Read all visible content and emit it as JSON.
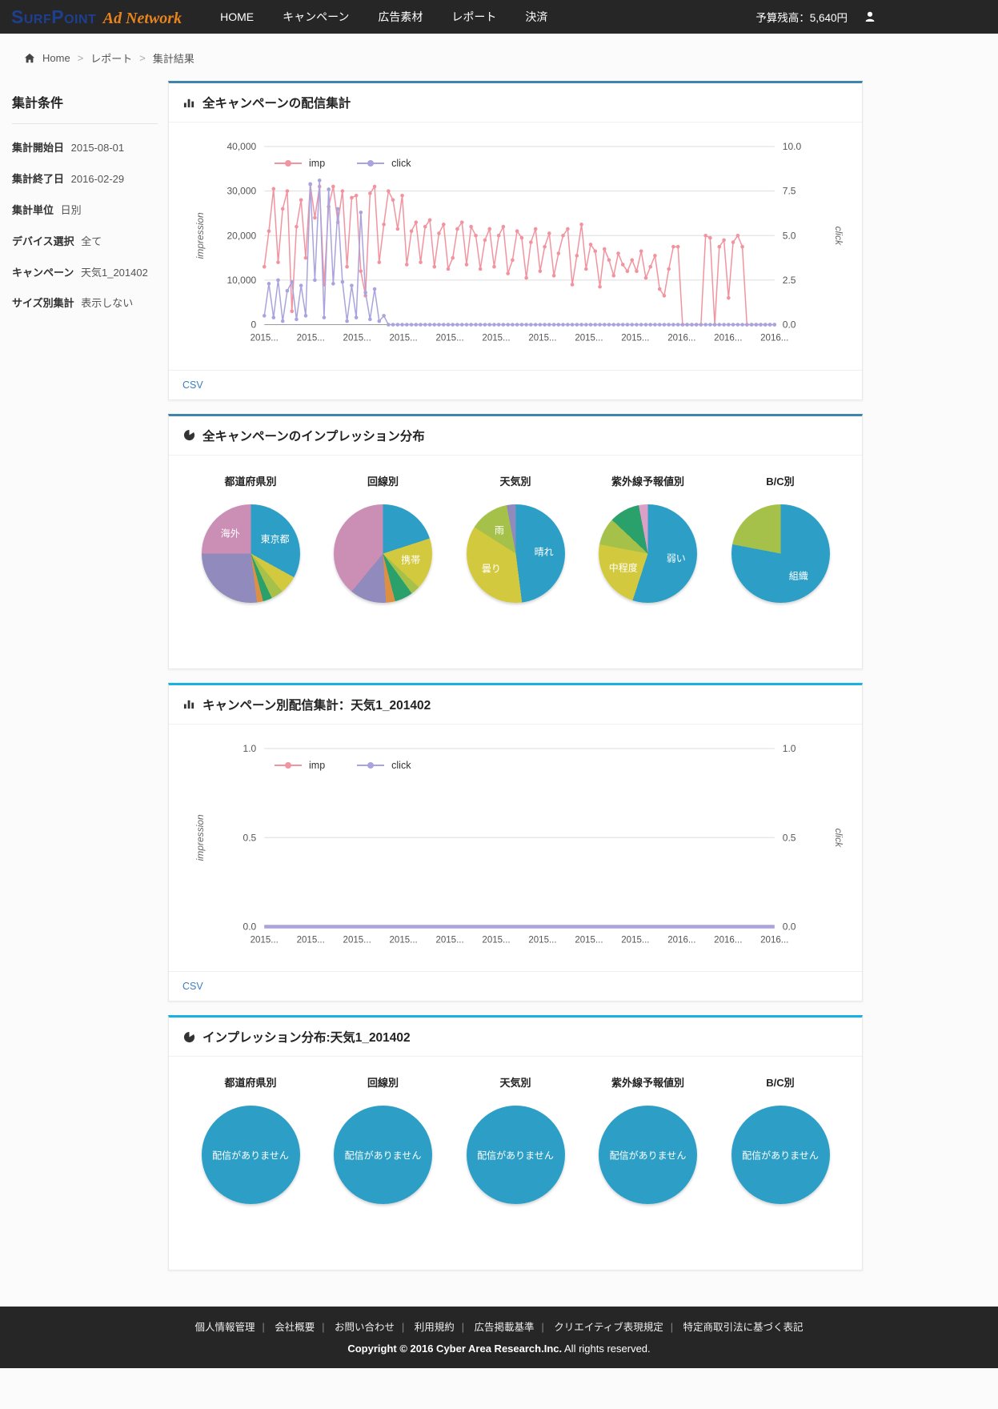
{
  "colors": {
    "logo_primary": "#1e3f8f",
    "logo_secondary": "#e8831d",
    "accent_blue": "#3e84ae",
    "accent_cyan": "#17b2e3",
    "imp_line": "#f2949f",
    "click_line": "#a9a4dd",
    "pie_teal": "#2d9fc6"
  },
  "navbar": {
    "logo_primary": "SurfPoint",
    "logo_secondary": "Ad Network",
    "items": [
      {
        "label": "HOME"
      },
      {
        "label": "キャンペーン"
      },
      {
        "label": "広告素材"
      },
      {
        "label": "レポート"
      },
      {
        "label": "決済"
      }
    ],
    "budget": "予算残高：5,640円"
  },
  "breadcrumb": {
    "separator": ">",
    "items": [
      "Home",
      "レポート",
      "集計結果"
    ]
  },
  "sidebar": {
    "title": "集計条件",
    "fields": [
      {
        "label": "集計開始日",
        "value": "2015-08-01"
      },
      {
        "label": "集計終了日",
        "value": "2016-02-29"
      },
      {
        "label": "集計単位",
        "value": "日別"
      },
      {
        "label": "デバイス選択",
        "value": "全て"
      },
      {
        "label": "キャンペーン",
        "value": "天気1_201402"
      },
      {
        "label": "サイズ別集計",
        "value": "表示しない"
      }
    ]
  },
  "panels": {
    "all_delivery": {
      "title": "全キャンペーンの配信集計",
      "csv_label": "CSV"
    },
    "all_distribution": {
      "title": "全キャンペーンのインプレッション分布"
    },
    "single_delivery": {
      "title": "キャンペーン別配信集計：天気1_201402",
      "csv_label": "CSV"
    },
    "single_distribution": {
      "title": "インプレッション分布:天気1_201402"
    }
  },
  "chart_data": [
    {
      "type": "line",
      "title": "全キャンペーンの配信集計",
      "x_labels": [
        "2015...",
        "2015...",
        "2015...",
        "2015...",
        "2015...",
        "2015...",
        "2015...",
        "2015...",
        "2015...",
        "2016...",
        "2016...",
        "2016..."
      ],
      "y_left": {
        "title": "impression",
        "max": 40000,
        "ticks": [
          {
            "v": 0,
            "label": "0"
          },
          {
            "v": 10000,
            "label": "10,000"
          },
          {
            "v": 20000,
            "label": "20,000"
          },
          {
            "v": 30000,
            "label": "30,000"
          },
          {
            "v": 40000,
            "label": "40,000"
          }
        ]
      },
      "y_right": {
        "title": "click",
        "max": 10,
        "ticks": [
          {
            "v": 0,
            "label": "0.0"
          },
          {
            "v": 2.5,
            "label": "2.5"
          },
          {
            "v": 5,
            "label": "5.0"
          },
          {
            "v": 7.5,
            "label": "7.5"
          },
          {
            "v": 10,
            "label": "10.0"
          }
        ]
      },
      "series": [
        {
          "name": "imp",
          "axis": "left",
          "color": "#f2949f",
          "width": 1.5,
          "dots": true,
          "values": [
            13000,
            21000,
            30500,
            14000,
            26000,
            30000,
            3000,
            22000,
            28000,
            15000,
            31500,
            24000,
            31000,
            9000,
            26500,
            31000,
            23000,
            30000,
            13000,
            28500,
            29000,
            12000,
            6500,
            29500,
            31000,
            14000,
            22500,
            30000,
            28000,
            21500,
            29000,
            13500,
            21000,
            23000,
            14000,
            22000,
            23500,
            13000,
            20500,
            22500,
            12500,
            15000,
            21500,
            23000,
            13500,
            22000,
            20000,
            12500,
            19000,
            21500,
            13000,
            20000,
            22000,
            11500,
            14500,
            21000,
            19500,
            10500,
            18500,
            21500,
            12000,
            17500,
            20500,
            11000,
            16000,
            20000,
            21500,
            9000,
            15500,
            22500,
            12500,
            18000,
            16500,
            8500,
            17000,
            14500,
            11000,
            16000,
            13500,
            12000,
            14500,
            12000,
            16500,
            10500,
            13000,
            15500,
            8000,
            6500,
            12500,
            17500,
            17500,
            0,
            0,
            0,
            0,
            0,
            20000,
            19500,
            0,
            17500,
            19000,
            6000,
            18500,
            20000,
            17500,
            0,
            0,
            0,
            0,
            0,
            0,
            0
          ]
        },
        {
          "name": "click",
          "axis": "right",
          "color": "#a9a4dd",
          "width": 1.5,
          "dots": true,
          "values": [
            0.5,
            2.3,
            0.4,
            2.5,
            0.2,
            1.9,
            2.4,
            0.3,
            2.2,
            0.5,
            7.9,
            2.5,
            8.1,
            0.4,
            7.6,
            2.3,
            6.5,
            2.4,
            0.2,
            2.2,
            0.4,
            6.3,
            1.8,
            0.3,
            2.0,
            0.2,
            0.5,
            0,
            0,
            0,
            0,
            0,
            0,
            0,
            0,
            0,
            0,
            0,
            0,
            0,
            0,
            0,
            0,
            0,
            0,
            0,
            0,
            0,
            0,
            0,
            0,
            0,
            0,
            0,
            0,
            0,
            0,
            0,
            0,
            0,
            0,
            0,
            0,
            0,
            0,
            0,
            0,
            0,
            0,
            0,
            0,
            0,
            0,
            0,
            0,
            0,
            0,
            0,
            0,
            0,
            0,
            0,
            0,
            0,
            0,
            0,
            0,
            0,
            0,
            0,
            0,
            0,
            0,
            0,
            0,
            0,
            0,
            0,
            0,
            0,
            0,
            0,
            0,
            0,
            0,
            0,
            0,
            0,
            0,
            0,
            0,
            0
          ]
        }
      ]
    },
    {
      "type": "pie",
      "title": "全キャンペーンのインプレッション分布",
      "charts": [
        {
          "name": "都道府県別",
          "slices": [
            {
              "label": "東京都",
              "value": 33,
              "color": "#2d9fc6"
            },
            {
              "value": 6,
              "color": "#d3c93e"
            },
            {
              "value": 4,
              "color": "#a6c14a"
            },
            {
              "value": 3,
              "color": "#2aa06a"
            },
            {
              "value": 2,
              "color": "#dd9044"
            },
            {
              "value": 27,
              "color": "#918abd"
            },
            {
              "label": "海外",
              "value": 25,
              "color": "#cb8fb6"
            }
          ]
        },
        {
          "name": "回線別",
          "slices": [
            {
              "value": 20,
              "color": "#2d9fc6"
            },
            {
              "label": "携帯",
              "value": 17,
              "color": "#d3c93e"
            },
            {
              "value": 3,
              "color": "#a6c14a"
            },
            {
              "value": 6,
              "color": "#2aa06a"
            },
            {
              "value": 3,
              "color": "#dd9044"
            },
            {
              "value": 12,
              "color": "#918abd"
            },
            {
              "value": 39,
              "color": "#cb8fb6"
            }
          ]
        },
        {
          "name": "天気別",
          "slices": [
            {
              "label": "晴れ",
              "value": 48,
              "color": "#2d9fc6"
            },
            {
              "label": "曇り",
              "value": 36,
              "color": "#d3c93e"
            },
            {
              "label": "雨",
              "value": 13,
              "color": "#a6c14a"
            },
            {
              "value": 3,
              "color": "#918abd"
            }
          ]
        },
        {
          "name": "紫外線予報値別",
          "slices": [
            {
              "label": "弱い",
              "value": 55,
              "color": "#2d9fc6"
            },
            {
              "label": "中程度",
              "value": 23,
              "color": "#d3c93e"
            },
            {
              "value": 9,
              "color": "#a6c14a"
            },
            {
              "value": 10,
              "color": "#2aa06a"
            },
            {
              "value": 3,
              "color": "#dba0c8"
            }
          ]
        },
        {
          "name": "B/C別",
          "slices": [
            {
              "label": "組織",
              "value": 78,
              "color": "#2d9fc6"
            },
            {
              "value": 22,
              "color": "#a6c14a"
            }
          ]
        }
      ]
    },
    {
      "type": "line",
      "title": "キャンペーン別配信集計：天気1_201402",
      "x_labels": [
        "2015...",
        "2015...",
        "2015...",
        "2015...",
        "2015...",
        "2015...",
        "2015...",
        "2015...",
        "2015...",
        "2016...",
        "2016...",
        "2016..."
      ],
      "y_left": {
        "title": "impression",
        "max": 1,
        "ticks": [
          {
            "v": 0,
            "label": "0.0"
          },
          {
            "v": 0.5,
            "label": "0.5"
          },
          {
            "v": 1,
            "label": "1.0"
          }
        ]
      },
      "y_right": {
        "title": "click",
        "max": 1,
        "ticks": [
          {
            "v": 0,
            "label": "0.0"
          },
          {
            "v": 0.5,
            "label": "0.5"
          },
          {
            "v": 1,
            "label": "1.0"
          }
        ]
      },
      "series": [
        {
          "name": "imp",
          "axis": "left",
          "color": "#f2949f",
          "width": 2,
          "dots": false,
          "values": [
            0,
            0,
            0,
            0,
            0,
            0,
            0,
            0,
            0,
            0,
            0,
            0
          ]
        },
        {
          "name": "click",
          "axis": "right",
          "color": "#a9a4dd",
          "width": 4.5,
          "dots": false,
          "values": [
            0,
            0,
            0,
            0,
            0,
            0,
            0,
            0,
            0,
            0,
            0,
            0
          ]
        }
      ]
    },
    {
      "type": "pie",
      "title": "インプレッション分布:天気1_201402",
      "charts": [
        {
          "name": "都道府県別",
          "slices": [
            {
              "label": "配信がありません",
              "value": 100,
              "color": "#2d9fc6"
            }
          ]
        },
        {
          "name": "回線別",
          "slices": [
            {
              "label": "配信がありません",
              "value": 100,
              "color": "#2d9fc6"
            }
          ]
        },
        {
          "name": "天気別",
          "slices": [
            {
              "label": "配信がありません",
              "value": 100,
              "color": "#2d9fc6"
            }
          ]
        },
        {
          "name": "紫外線予報値別",
          "slices": [
            {
              "label": "配信がありません",
              "value": 100,
              "color": "#2d9fc6"
            }
          ]
        },
        {
          "name": "B/C別",
          "slices": [
            {
              "label": "配信がありません",
              "value": 100,
              "color": "#2d9fc6"
            }
          ]
        }
      ]
    }
  ],
  "footer": {
    "separator": "|",
    "links": [
      "個人情報管理",
      "会社概要",
      "お問い合わせ",
      "利用規約",
      "広告掲載基準",
      "クリエイティブ表現規定",
      "特定商取引法に基づく表記"
    ],
    "copyright_strong": "Copyright © 2016 Cyber Area Research.Inc.",
    "copyright_rest": " All rights reserved."
  }
}
